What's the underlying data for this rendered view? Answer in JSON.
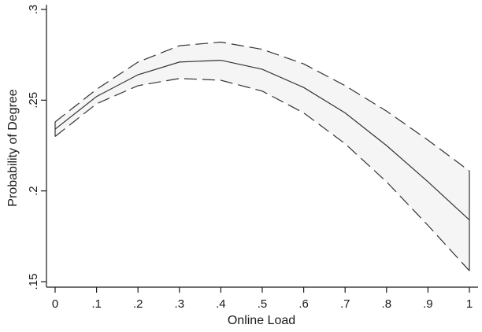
{
  "chart_data": {
    "type": "line",
    "title": "",
    "xlabel": "Online Load",
    "ylabel": "Probability of Degree",
    "xlim": [
      0,
      1
    ],
    "ylim": [
      0.15,
      0.3
    ],
    "x_ticks": [
      {
        "value": 0,
        "label": "0"
      },
      {
        "value": 0.1,
        "label": ".1"
      },
      {
        "value": 0.2,
        "label": ".2"
      },
      {
        "value": 0.3,
        "label": ".3"
      },
      {
        "value": 0.4,
        "label": ".4"
      },
      {
        "value": 0.5,
        "label": ".5"
      },
      {
        "value": 0.6,
        "label": ".6"
      },
      {
        "value": 0.7,
        "label": ".7"
      },
      {
        "value": 0.8,
        "label": ".8"
      },
      {
        "value": 0.9,
        "label": ".9"
      },
      {
        "value": 1.0,
        "label": "1"
      }
    ],
    "y_ticks": [
      {
        "value": 0.15,
        "label": ".15"
      },
      {
        "value": 0.2,
        "label": ".2"
      },
      {
        "value": 0.25,
        "label": ".25"
      },
      {
        "value": 0.3,
        "label": ".3"
      }
    ],
    "grid": false,
    "band_fill": "#f5f5f5",
    "line_color": "#333333",
    "x": [
      0,
      0.1,
      0.2,
      0.3,
      0.4,
      0.5,
      0.6,
      0.7,
      0.8,
      0.9,
      1.0
    ],
    "series": [
      {
        "role": "estimate",
        "style": "solid",
        "values": [
          0.234,
          0.252,
          0.264,
          0.271,
          0.272,
          0.267,
          0.257,
          0.243,
          0.225,
          0.205,
          0.184
        ]
      },
      {
        "role": "upper_ci",
        "style": "dashed",
        "values": [
          0.238,
          0.256,
          0.271,
          0.28,
          0.282,
          0.278,
          0.27,
          0.258,
          0.244,
          0.228,
          0.211
        ]
      },
      {
        "role": "lower_ci",
        "style": "dashed",
        "values": [
          0.23,
          0.248,
          0.258,
          0.262,
          0.261,
          0.255,
          0.243,
          0.226,
          0.205,
          0.181,
          0.156
        ]
      }
    ]
  }
}
